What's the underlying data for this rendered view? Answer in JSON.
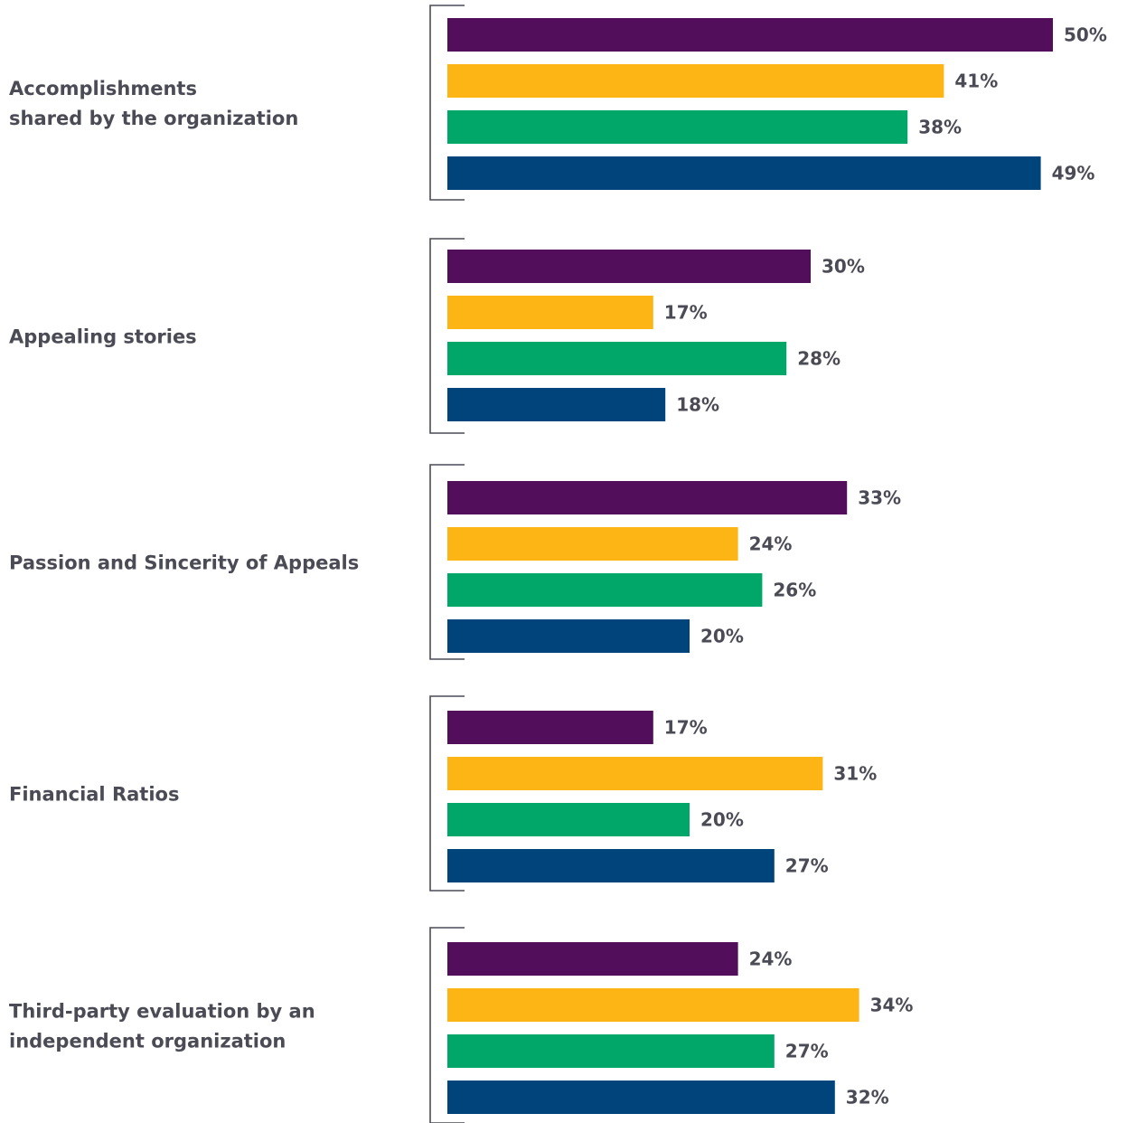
{
  "chart_data": {
    "type": "bar",
    "orientation": "horizontal",
    "categories": [
      "Accomplishments shared by the organization",
      "Appealing stories",
      "Passion and Sincerity of Appeals",
      "Financial Ratios",
      "Third-party evaluation by an independent organization"
    ],
    "category_lines": [
      [
        "Accomplishments",
        "shared by the organization"
      ],
      [
        "Appealing stories"
      ],
      [
        "Passion and Sincerity of Appeals"
      ],
      [
        "Financial Ratios"
      ],
      [
        "Third-party evaluation by an",
        "independent organization"
      ]
    ],
    "series": [
      {
        "color": "#520d5b",
        "values": [
          50,
          30,
          33,
          17,
          24
        ]
      },
      {
        "color": "#fdb515",
        "values": [
          41,
          17,
          24,
          31,
          34
        ]
      },
      {
        "color": "#00a768",
        "values": [
          38,
          28,
          26,
          20,
          27
        ]
      },
      {
        "color": "#00447c",
        "values": [
          49,
          18,
          20,
          27,
          32
        ]
      }
    ],
    "value_format": "{v}%",
    "xlim": [
      0,
      50
    ],
    "grid": false,
    "legend": "none"
  }
}
